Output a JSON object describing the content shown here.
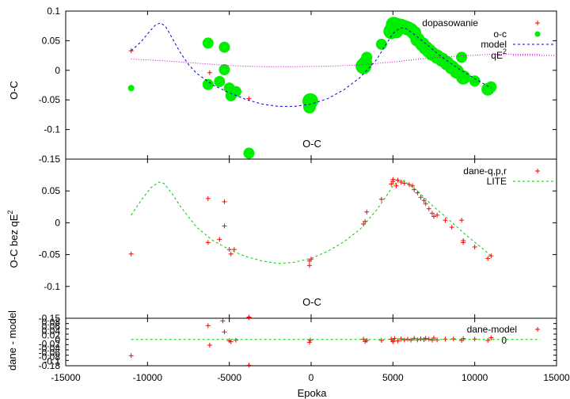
{
  "figure": {
    "xlabel": "Epoka"
  },
  "chart_data": [
    {
      "type": "scatter",
      "ylabel": "O-C",
      "title": "O-C",
      "xlim": [
        -15000,
        15000
      ],
      "ylim": [
        -0.15,
        0.1
      ],
      "x_ticks": [
        "-15000",
        "-10000",
        "-5000",
        "0",
        "5000",
        "10000",
        "15000"
      ],
      "y_ticks": [
        "0.1",
        "0.05",
        "0",
        "-0.05",
        "-0.1",
        "-0.15"
      ],
      "legend": [
        "dopasowanie",
        "o-c",
        "model",
        "qE2"
      ],
      "series": [
        {
          "name": "dopasowanie",
          "color": "#ff0000",
          "marker": "plus",
          "points": [
            [
              -11000,
              0.033
            ],
            [
              -6200,
              -0.004
            ],
            [
              -5500,
              -0.018
            ],
            [
              -3800,
              -0.048
            ],
            [
              0,
              -0.058
            ],
            [
              3300,
              0.01
            ],
            [
              5000,
              0.068
            ],
            [
              5700,
              0.064
            ],
            [
              6500,
              0.052
            ],
            [
              7500,
              0.03
            ],
            [
              9000,
              0.006
            ],
            [
              10000,
              -0.017
            ],
            [
              10900,
              -0.038
            ],
            [
              11100,
              -0.035
            ]
          ]
        },
        {
          "name": "o-c",
          "color": "#00ee00",
          "marker": "circle",
          "points": [
            [
              -11000,
              -0.03,
              4
            ],
            [
              -6300,
              0.046,
              7
            ],
            [
              -6300,
              -0.024,
              7
            ],
            [
              -5600,
              -0.019,
              7
            ],
            [
              -5300,
              0.039,
              7
            ],
            [
              -5300,
              0.001,
              7
            ],
            [
              -5000,
              -0.03,
              7
            ],
            [
              -4900,
              -0.043,
              7
            ],
            [
              -4600,
              -0.036,
              7
            ],
            [
              -3800,
              -0.14,
              7
            ],
            [
              -100,
              -0.062,
              8
            ],
            [
              -100,
              -0.055,
              8
            ],
            [
              -50,
              -0.052,
              10
            ],
            [
              3200,
              0.007,
              10
            ],
            [
              3300,
              0.012,
              9
            ],
            [
              3400,
              0.022,
              7
            ],
            [
              4300,
              0.044,
              7
            ],
            [
              4900,
              0.066,
              10
            ],
            [
              5000,
              0.07,
              10
            ],
            [
              5050,
              0.077,
              10
            ],
            [
              5200,
              0.066,
              9
            ],
            [
              5300,
              0.076,
              9
            ],
            [
              5500,
              0.075,
              9
            ],
            [
              5700,
              0.073,
              9
            ],
            [
              5900,
              0.071,
              9
            ],
            [
              6100,
              0.068,
              9
            ],
            [
              6300,
              0.063,
              9
            ],
            [
              6500,
              0.052,
              9
            ],
            [
              6800,
              0.044,
              9
            ],
            [
              7000,
              0.038,
              9
            ],
            [
              7200,
              0.033,
              9
            ],
            [
              7400,
              0.028,
              9
            ],
            [
              7700,
              0.023,
              9
            ],
            [
              8000,
              0.018,
              9
            ],
            [
              8300,
              0.012,
              9
            ],
            [
              8600,
              0.005,
              9
            ],
            [
              8900,
              -0.002,
              9
            ],
            [
              9200,
              0.022,
              7
            ],
            [
              9300,
              -0.012,
              9
            ],
            [
              10000,
              -0.018,
              7
            ],
            [
              10800,
              -0.032,
              8
            ],
            [
              11000,
              -0.028,
              7
            ]
          ]
        },
        {
          "name": "model",
          "color": "#0000cc",
          "line": "dashed",
          "points": [
            [
              -11000,
              0.033
            ],
            [
              -10400,
              0.048
            ],
            [
              -9800,
              0.068
            ],
            [
              -9500,
              0.077
            ],
            [
              -9200,
              0.08
            ],
            [
              -8900,
              0.074
            ],
            [
              -8500,
              0.055
            ],
            [
              -8000,
              0.03
            ],
            [
              -7500,
              0.01
            ],
            [
              -7000,
              -0.005
            ],
            [
              -6000,
              -0.025
            ],
            [
              -5000,
              -0.038
            ],
            [
              -4000,
              -0.049
            ],
            [
              -3000,
              -0.057
            ],
            [
              -2000,
              -0.061
            ],
            [
              -1000,
              -0.061
            ],
            [
              0,
              -0.057
            ],
            [
              1000,
              -0.048
            ],
            [
              2000,
              -0.033
            ],
            [
              3000,
              -0.012
            ],
            [
              4000,
              0.018
            ],
            [
              4600,
              0.045
            ],
            [
              5000,
              0.062
            ],
            [
              5400,
              0.071
            ],
            [
              5700,
              0.072
            ],
            [
              6200,
              0.063
            ],
            [
              7000,
              0.045
            ],
            [
              8000,
              0.022
            ],
            [
              9000,
              0.003
            ],
            [
              10000,
              -0.014
            ],
            [
              11000,
              -0.03
            ]
          ]
        },
        {
          "name": "qE2",
          "color": "#cc00cc",
          "line": "dotted",
          "points": [
            [
              -11000,
              0.019
            ],
            [
              -9000,
              0.016
            ],
            [
              -7000,
              0.012
            ],
            [
              -5000,
              0.008
            ],
            [
              -3000,
              0.006
            ],
            [
              -1000,
              0.006
            ],
            [
              1000,
              0.007
            ],
            [
              3000,
              0.009
            ],
            [
              5000,
              0.014
            ],
            [
              7000,
              0.02
            ],
            [
              9000,
              0.024
            ],
            [
              11000,
              0.027
            ],
            [
              14000,
              0.027
            ]
          ]
        }
      ]
    },
    {
      "type": "scatter",
      "ylabel": "O-C bez qE2",
      "title": "O-C",
      "xlim": [
        -15000,
        15000
      ],
      "ylim": [
        -0.15,
        0.1
      ],
      "y_ticks": [
        "0.05",
        "0",
        "-0.05",
        "-0.1",
        "-0.15"
      ],
      "legend": [
        "dane-q,p,r",
        "LITE"
      ],
      "series": [
        {
          "name": "dane-q,p,r",
          "color": "#ff0000",
          "marker": "plus",
          "points": [
            [
              -11000,
              -0.049
            ],
            [
              -6300,
              0.038
            ],
            [
              -6300,
              -0.031
            ],
            [
              -5600,
              -0.026
            ],
            [
              -5300,
              0.033
            ],
            [
              -5300,
              -0.005
            ],
            [
              -5000,
              -0.042
            ],
            [
              -4900,
              -0.049
            ],
            [
              -4700,
              -0.042
            ],
            [
              -3800,
              -0.149
            ],
            [
              -100,
              -0.067
            ],
            [
              -100,
              -0.06
            ],
            [
              0,
              -0.057
            ],
            [
              3200,
              -0.002
            ],
            [
              3300,
              0.002
            ],
            [
              3400,
              0.017
            ],
            [
              4300,
              0.037
            ],
            [
              4900,
              0.061
            ],
            [
              5000,
              0.065
            ],
            [
              5000,
              0.068
            ],
            [
              5200,
              0.058
            ],
            [
              5300,
              0.067
            ],
            [
              5500,
              0.064
            ],
            [
              5700,
              0.062
            ],
            [
              6000,
              0.06
            ],
            [
              6200,
              0.058
            ],
            [
              6300,
              0.052
            ],
            [
              6500,
              0.047
            ],
            [
              6700,
              0.04
            ],
            [
              6900,
              0.035
            ],
            [
              7000,
              0.03
            ],
            [
              7200,
              0.022
            ],
            [
              7400,
              0.015
            ],
            [
              7500,
              0.01
            ],
            [
              7700,
              0.012
            ],
            [
              8200,
              0.004
            ],
            [
              8600,
              -0.007
            ],
            [
              9200,
              0.004
            ],
            [
              9300,
              -0.028
            ],
            [
              9300,
              -0.031
            ],
            [
              10000,
              -0.038
            ],
            [
              10800,
              -0.056
            ],
            [
              11000,
              -0.052
            ]
          ]
        },
        {
          "name": "LITE",
          "color": "#00cc00",
          "line": "dashed",
          "points": [
            [
              -11000,
              0.012
            ],
            [
              -10400,
              0.035
            ],
            [
              -9800,
              0.055
            ],
            [
              -9300,
              0.064
            ],
            [
              -9000,
              0.062
            ],
            [
              -8500,
              0.046
            ],
            [
              -8000,
              0.026
            ],
            [
              -7000,
              -0.007
            ],
            [
              -6000,
              -0.028
            ],
            [
              -5000,
              -0.042
            ],
            [
              -4000,
              -0.053
            ],
            [
              -3000,
              -0.06
            ],
            [
              -2000,
              -0.064
            ],
            [
              -1000,
              -0.062
            ],
            [
              0,
              -0.056
            ],
            [
              1000,
              -0.045
            ],
            [
              2000,
              -0.03
            ],
            [
              3000,
              -0.01
            ],
            [
              4000,
              0.02
            ],
            [
              4600,
              0.042
            ],
            [
              5000,
              0.058
            ],
            [
              5400,
              0.067
            ],
            [
              5700,
              0.066
            ],
            [
              6500,
              0.05
            ],
            [
              7500,
              0.025
            ],
            [
              8500,
              0.003
            ],
            [
              9500,
              -0.02
            ],
            [
              10500,
              -0.041
            ],
            [
              11000,
              -0.052
            ]
          ]
        }
      ]
    },
    {
      "type": "scatter",
      "ylabel": "dane - model",
      "xlim": [
        -15000,
        15000
      ],
      "ylim": [
        -0.1,
        0.08
      ],
      "y_ticks": [
        "-0.1",
        "-0.08",
        "-0.06",
        "-0.04",
        "-0.02",
        "0",
        "0.02",
        "0.04",
        "0.06",
        "0.08"
      ],
      "y_tick_labels_shown": [
        "0.08",
        "0.06",
        "0.04",
        "0.02",
        "0",
        "-0.02",
        "-0.04",
        "-0.06",
        "-0.08",
        "-0.1",
        "-0.18"
      ],
      "legend": [
        "dane-model",
        "0"
      ],
      "series": [
        {
          "name": "dane-model",
          "color": "#ff0000",
          "marker": "plus",
          "points": [
            [
              -11000,
              -0.062
            ],
            [
              -6300,
              0.052
            ],
            [
              -6200,
              -0.022
            ],
            [
              -5400,
              0.07
            ],
            [
              -5300,
              0.028
            ],
            [
              -5000,
              -0.005
            ],
            [
              -4900,
              -0.009
            ],
            [
              -4600,
              -0.003
            ],
            [
              -3800,
              0.085
            ],
            [
              -3800,
              -0.098
            ],
            [
              -100,
              -0.011
            ],
            [
              -50,
              -0.003
            ],
            [
              3200,
              0.001
            ],
            [
              3300,
              -0.008
            ],
            [
              3400,
              -0.004
            ],
            [
              4300,
              -0.004
            ],
            [
              4900,
              0.001
            ],
            [
              5000,
              -0.004
            ],
            [
              5000,
              -0.009
            ],
            [
              5100,
              0.003
            ],
            [
              5300,
              -0.006
            ],
            [
              5500,
              0.002
            ],
            [
              5700,
              -0.002
            ],
            [
              5900,
              0.001
            ],
            [
              6100,
              -0.003
            ],
            [
              6300,
              0.004
            ],
            [
              6500,
              -0.002
            ],
            [
              6700,
              0.002
            ],
            [
              6900,
              -0.001
            ],
            [
              7000,
              0.004
            ],
            [
              7200,
              0.001
            ],
            [
              7400,
              -0.003
            ],
            [
              7500,
              0.005
            ],
            [
              7700,
              -0.002
            ],
            [
              8200,
              0.001
            ],
            [
              8700,
              0.002
            ],
            [
              9200,
              -0.004
            ],
            [
              9300,
              0.003
            ],
            [
              10000,
              0.001
            ],
            [
              10800,
              -0.004
            ],
            [
              11000,
              0.006
            ]
          ]
        },
        {
          "name": "0",
          "color": "#00cc00",
          "line": "dashed",
          "points": [
            [
              -11000,
              0
            ],
            [
              14000,
              0
            ]
          ]
        }
      ]
    }
  ]
}
